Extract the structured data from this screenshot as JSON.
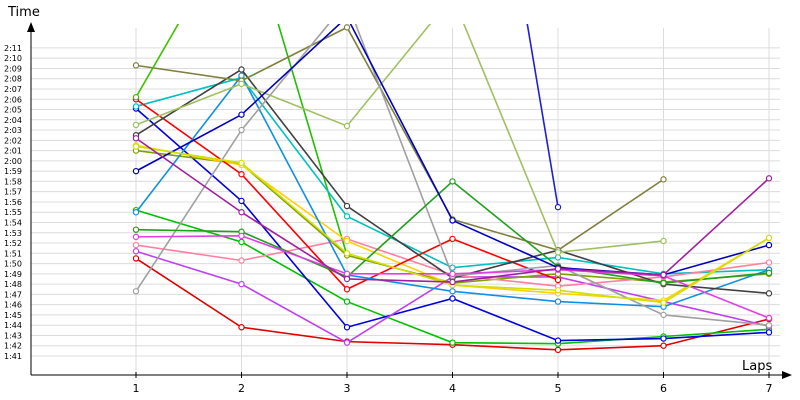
{
  "chart_data": {
    "type": "line",
    "title": "",
    "xlabel": "Laps",
    "ylabel": "Time",
    "x": [
      1,
      2,
      3,
      4,
      5,
      6,
      7
    ],
    "y_unit": "seconds",
    "ylim": [
      97,
      131
    ],
    "yticks": [
      {
        "value": 101,
        "label": "1:41"
      },
      {
        "value": 102,
        "label": "1:42"
      },
      {
        "value": 103,
        "label": "1:43"
      },
      {
        "value": 104,
        "label": "1:44"
      },
      {
        "value": 105,
        "label": "1:45"
      },
      {
        "value": 106,
        "label": "1:46"
      },
      {
        "value": 107,
        "label": "1:47"
      },
      {
        "value": 108,
        "label": "1:48"
      },
      {
        "value": 109,
        "label": "1:49"
      },
      {
        "value": 110,
        "label": "1:50"
      },
      {
        "value": 111,
        "label": "1:51"
      },
      {
        "value": 112,
        "label": "1:52"
      },
      {
        "value": 113,
        "label": "1:53"
      },
      {
        "value": 114,
        "label": "1:54"
      },
      {
        "value": 115,
        "label": "1:55"
      },
      {
        "value": 116,
        "label": "1:56"
      },
      {
        "value": 117,
        "label": "1:57"
      },
      {
        "value": 118,
        "label": "1:58"
      },
      {
        "value": 119,
        "label": "1:59"
      },
      {
        "value": 120,
        "label": "2:00"
      },
      {
        "value": 121,
        "label": "2:01"
      },
      {
        "value": 122,
        "label": "2:02"
      },
      {
        "value": 123,
        "label": "2:03"
      },
      {
        "value": 124,
        "label": "2:04"
      },
      {
        "value": 125,
        "label": "2:05"
      },
      {
        "value": 126,
        "label": "2:06"
      },
      {
        "value": 127,
        "label": "2:07"
      },
      {
        "value": 128,
        "label": "2:08"
      },
      {
        "value": 129,
        "label": "2:09"
      },
      {
        "value": 130,
        "label": "2:10"
      },
      {
        "value": 131,
        "label": "2:11"
      }
    ],
    "grid": true,
    "series": [
      {
        "color": "#e00000",
        "values": [
          110.5,
          103.8,
          102.4,
          102.1,
          101.6,
          102.0,
          104.6
        ]
      },
      {
        "color": "#00c000",
        "values": [
          115.2,
          112.1,
          106.3,
          102.3,
          102.2,
          102.9,
          103.6
        ]
      },
      {
        "color": "#0000e0",
        "values": [
          125.1,
          116.1,
          103.8,
          106.6,
          102.5,
          102.7,
          103.3
        ]
      },
      {
        "color": "#c040f0",
        "values": [
          111.2,
          108.0,
          102.3,
          108.7,
          108.7,
          106.3,
          103.9
        ]
      },
      {
        "color": "#80a000",
        "values": [
          121.0,
          119.7,
          110.8,
          108.1,
          109.0,
          108.2,
          109.0
        ]
      },
      {
        "color": "#00c0c0",
        "values": [
          125.3,
          128.1,
          114.6,
          109.6,
          110.6,
          109.0,
          109.4
        ]
      },
      {
        "color": "#ff80a0",
        "values": [
          111.8,
          110.3,
          112.4,
          108.9,
          107.8,
          108.7,
          110.1
        ]
      },
      {
        "color": "#ffd000",
        "values": [
          121.5,
          119.6,
          112.2,
          107.9,
          107.1,
          106.4,
          112.5
        ]
      },
      {
        "color": "#ff0000",
        "values": [
          126.0,
          118.7,
          107.5,
          112.4,
          108.4,
          null,
          null
        ]
      },
      {
        "color": "#1090e0",
        "values": [
          115.0,
          128.3,
          108.9,
          107.3,
          106.3,
          105.8,
          109.4
        ]
      },
      {
        "color": "#404040",
        "values": [
          122.5,
          128.9,
          115.6,
          108.6,
          111.3,
          108.0,
          107.1
        ]
      },
      {
        "color": "#808040",
        "values": [
          129.3,
          127.8,
          133.0,
          114.3,
          111.3,
          118.2,
          null
        ]
      },
      {
        "color": "#a0c060",
        "values": [
          123.5,
          127.5,
          123.4,
          136.0,
          111.1,
          112.2,
          null
        ]
      },
      {
        "color": "#a0a0a0",
        "values": [
          107.3,
          123.0,
          135.5,
          108.8,
          109.8,
          105.0,
          104.0
        ]
      },
      {
        "color": "#20a020",
        "values": [
          113.3,
          113.1,
          108.7,
          118.0,
          109.7,
          108.1,
          109.1
        ]
      },
      {
        "color": "#e040e0",
        "values": [
          112.6,
          112.7,
          109.0,
          109.0,
          109.4,
          108.8,
          104.7
        ]
      },
      {
        "color": "#0000c0",
        "values": [
          119.0,
          124.5,
          134.0,
          114.2,
          109.6,
          108.9,
          111.8
        ]
      },
      {
        "color": "#d0e000",
        "values": [
          121.4,
          119.8,
          111.0,
          107.9,
          107.4,
          106.2,
          112.5
        ]
      },
      {
        "color": "#a020a0",
        "values": [
          122.2,
          115.0,
          108.5,
          108.2,
          109.5,
          108.9,
          118.3
        ]
      },
      {
        "color": "#2020d0",
        "values": [
          null,
          null,
          null,
          null,
          115.5,
          null,
          null
        ]
      },
      {
        "color": "#40c000",
        "values": [
          126.2,
          144.0,
          null,
          null,
          null,
          null,
          null
        ]
      }
    ]
  },
  "extra_segments": [
    {
      "color": "#2020d0",
      "from": [
        4.6,
        140
      ],
      "to": [
        5.0,
        115.5
      ]
    },
    {
      "color": "#20c000",
      "from": [
        2.3,
        135
      ],
      "to": [
        3.0,
        110.8
      ]
    }
  ]
}
